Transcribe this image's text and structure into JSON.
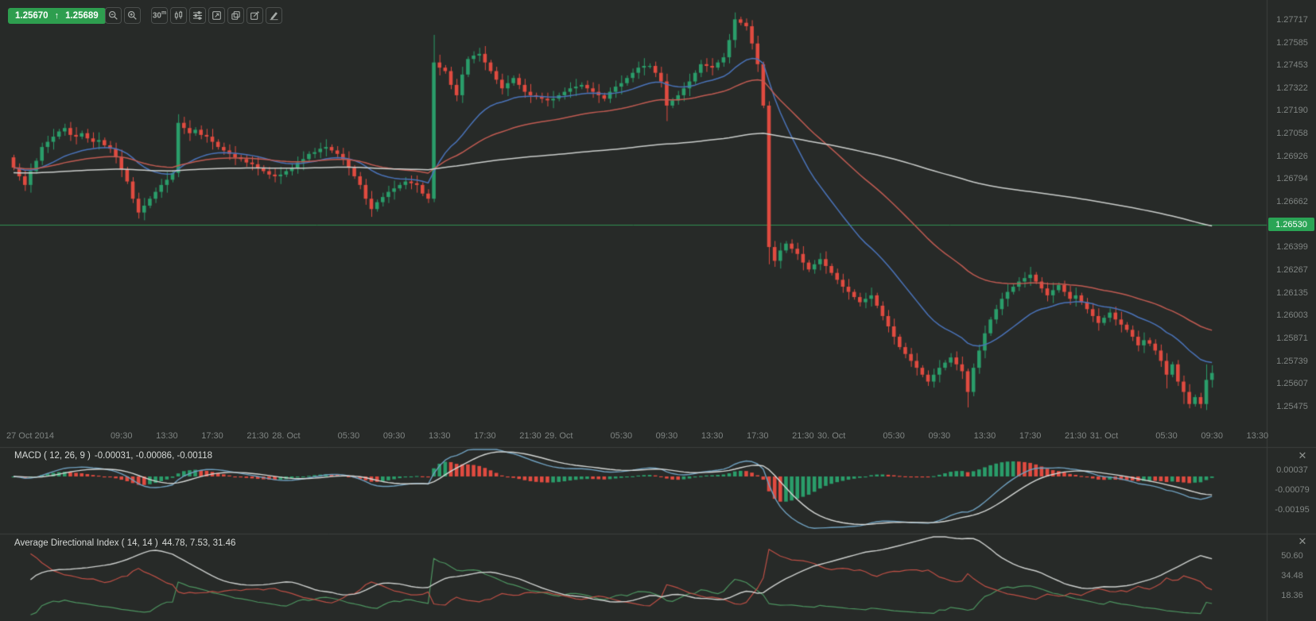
{
  "colors": {
    "background": "#272a28",
    "border": "#3c403e",
    "candle_up": "#2a9d6a",
    "candle_down": "#e04b40",
    "ma_fast": "#4a73b9",
    "ma_mid": "#c05b52",
    "ma_slow": "#cbcecc",
    "price_line": "#2f9150",
    "quote_badge_bg": "#2e9e4f",
    "current_price_badge_bg": "#2aa455",
    "macd_line": "#6fa0bf",
    "macd_signal": "#d4d7d5",
    "hist_up": "#2a9d6a",
    "hist_down": "#e04b40",
    "adx_line": "#cdd0ce",
    "plus_di": "#4d9460",
    "minus_di": "#bc4f45",
    "axis_text": "#7f8482",
    "header_text": "#d6d9d7"
  },
  "quote": {
    "bid": "1.25670",
    "arrow": "↑",
    "ask": "1.25689"
  },
  "toolbar": {
    "timeframe": {
      "value": "30",
      "unit": "m"
    },
    "icons": [
      "magnifier-minus",
      "magnifier-plus",
      "timeframe-30m",
      "candlestick",
      "sliders",
      "expand",
      "copy",
      "edit",
      "pen"
    ]
  },
  "price_axis": {
    "ticks": [
      "1.27717",
      "1.27585",
      "1.27453",
      "1.27322",
      "1.27190",
      "1.27058",
      "1.26926",
      "1.26794",
      "1.26662",
      "1.26530",
      "1.26399",
      "1.26267",
      "1.26135",
      "1.26003",
      "1.25871",
      "1.25739",
      "1.25607",
      "1.25475"
    ],
    "current_label": "1.26530"
  },
  "time_axis": {
    "ticks": [
      {
        "i": 0,
        "label": "27 Oct 2014"
      },
      {
        "i": 19,
        "label": "09:30"
      },
      {
        "i": 27,
        "label": "13:30"
      },
      {
        "i": 35,
        "label": "17:30"
      },
      {
        "i": 43,
        "label": "21:30"
      },
      {
        "i": 48,
        "label": "28. Oct"
      },
      {
        "i": 59,
        "label": "05:30"
      },
      {
        "i": 67,
        "label": "09:30"
      },
      {
        "i": 75,
        "label": "13:30"
      },
      {
        "i": 83,
        "label": "17:30"
      },
      {
        "i": 91,
        "label": "21:30"
      },
      {
        "i": 96,
        "label": "29. Oct"
      },
      {
        "i": 107,
        "label": "05:30"
      },
      {
        "i": 115,
        "label": "09:30"
      },
      {
        "i": 123,
        "label": "13:30"
      },
      {
        "i": 131,
        "label": "17:30"
      },
      {
        "i": 139,
        "label": "21:30"
      },
      {
        "i": 144,
        "label": "30. Oct"
      },
      {
        "i": 155,
        "label": "05:30"
      },
      {
        "i": 163,
        "label": "09:30"
      },
      {
        "i": 171,
        "label": "13:30"
      },
      {
        "i": 179,
        "label": "17:30"
      },
      {
        "i": 187,
        "label": "21:30"
      },
      {
        "i": 192,
        "label": "31. Oct"
      },
      {
        "i": 203,
        "label": "05:30"
      },
      {
        "i": 211,
        "label": "09:30"
      },
      {
        "i": 219,
        "label": "13:30"
      }
    ]
  },
  "panels": {
    "macd": {
      "title": "MACD ( 12, 26, 9 )",
      "values": "-0.00031, -0.00086, -0.00118",
      "close_label": "✕",
      "axis_ticks": [
        "0.00037",
        "-0.00079",
        "-0.00195"
      ]
    },
    "adx": {
      "title": "Average Directional Index ( 14, 14 )",
      "values": "44.78, 7.53, 31.46",
      "close_label": "✕",
      "axis_ticks": [
        "50.60",
        "34.48",
        "18.36"
      ]
    }
  },
  "chart_data": {
    "type": "candlestick",
    "interval": "30m",
    "visible_range": "27 Oct 2014 00:00 - 31 Oct 2014 09:30",
    "price_line": 1.2653,
    "y_ticks": [
      1.27717,
      1.27585,
      1.27453,
      1.27322,
      1.2719,
      1.27058,
      1.26926,
      1.26794,
      1.26662,
      1.2653,
      1.26399,
      1.26267,
      1.26135,
      1.26003,
      1.25871,
      1.25739,
      1.25607,
      1.25475
    ],
    "first_open": 1.2692,
    "closes": [
      1.2686,
      1.2681,
      1.2676,
      1.2684,
      1.269,
      1.2698,
      1.2701,
      1.2704,
      1.2707,
      1.2709,
      1.2705,
      1.2704,
      1.2706,
      1.2703,
      1.2701,
      1.2702,
      1.2699,
      1.2697,
      1.2692,
      1.2685,
      1.2678,
      1.2668,
      1.266,
      1.2664,
      1.2668,
      1.2672,
      1.2676,
      1.2679,
      1.2683,
      1.2712,
      1.2709,
      1.2706,
      1.2708,
      1.2705,
      1.2704,
      1.2701,
      1.2698,
      1.2696,
      1.2694,
      1.2692,
      1.2691,
      1.2689,
      1.2688,
      1.2686,
      1.2684,
      1.2682,
      1.2681,
      1.2682,
      1.2684,
      1.2686,
      1.2689,
      1.2691,
      1.2694,
      1.2695,
      1.2697,
      1.2698,
      1.2696,
      1.2694,
      1.2691,
      1.2686,
      1.2681,
      1.2676,
      1.2668,
      1.2662,
      1.2666,
      1.2669,
      1.2672,
      1.2674,
      1.2676,
      1.2678,
      1.2677,
      1.2676,
      1.2671,
      1.2668,
      1.2747,
      1.2744,
      1.2742,
      1.2734,
      1.2728,
      1.274,
      1.2749,
      1.2751,
      1.2752,
      1.2747,
      1.2742,
      1.2737,
      1.2732,
      1.2735,
      1.2738,
      1.2734,
      1.273,
      1.2728,
      1.2727,
      1.2726,
      1.2725,
      1.2726,
      1.2728,
      1.273,
      1.2732,
      1.2733,
      1.2734,
      1.2732,
      1.273,
      1.2728,
      1.2726,
      1.273,
      1.2733,
      1.2735,
      1.2738,
      1.2741,
      1.2744,
      1.2745,
      1.2745,
      1.2741,
      1.2736,
      1.2722,
      1.2725,
      1.2728,
      1.2732,
      1.2736,
      1.2741,
      1.2746,
      1.2745,
      1.2744,
      1.2747,
      1.275,
      1.276,
      1.2772,
      1.277,
      1.2768,
      1.2758,
      1.2746,
      1.2722,
      1.264,
      1.2632,
      1.2638,
      1.2642,
      1.2639,
      1.2636,
      1.2631,
      1.2627,
      1.263,
      1.2633,
      1.2629,
      1.2625,
      1.2621,
      1.2617,
      1.2614,
      1.2611,
      1.2608,
      1.261,
      1.2612,
      1.2606,
      1.26,
      1.2594,
      1.2588,
      1.2582,
      1.2578,
      1.2574,
      1.257,
      1.2566,
      1.2562,
      1.2566,
      1.257,
      1.2573,
      1.2576,
      1.2572,
      1.2568,
      1.2556,
      1.257,
      1.258,
      1.259,
      1.2598,
      1.2604,
      1.261,
      1.2614,
      1.2617,
      1.262,
      1.2622,
      1.2624,
      1.262,
      1.2616,
      1.2612,
      1.2615,
      1.2618,
      1.2614,
      1.261,
      1.2612,
      1.2608,
      1.2604,
      1.26,
      1.2596,
      1.2599,
      1.2602,
      1.2598,
      1.2595,
      1.2592,
      1.2588,
      1.2583,
      1.2586,
      1.2584,
      1.258,
      1.2574,
      1.2566,
      1.2572,
      1.2562,
      1.2556,
      1.2549,
      1.2553,
      1.2549,
      1.2563,
      1.2567
    ],
    "wick_overrides": {
      "29": [
        1.2717,
        null
      ],
      "74": [
        1.2763,
        1.2666
      ],
      "115": [
        null,
        1.2713
      ],
      "127": [
        1.2776,
        null
      ],
      "133": [
        null,
        1.263
      ],
      "168": [
        null,
        1.2547
      ],
      "203": [
        null,
        1.2558
      ],
      "206": [
        null,
        1.2549
      ],
      "207": [
        null,
        1.25465
      ],
      "210": [
        1.2572,
        null
      ]
    },
    "overlays": [
      {
        "type": "ema",
        "period": 20,
        "color_key": "ma_fast"
      },
      {
        "type": "ema",
        "period": 50,
        "color_key": "ma_mid"
      },
      {
        "type": "ema",
        "period": 240,
        "seed": 1.2683,
        "color_key": "ma_slow"
      }
    ],
    "indicators": [
      {
        "type": "macd",
        "fast": 12,
        "slow": 26,
        "signal": 9,
        "axis": [
          0.00037,
          -0.00079,
          -0.00195
        ]
      },
      {
        "type": "adx",
        "period": 14,
        "axis": [
          50.6,
          34.48,
          18.36
        ]
      }
    ]
  }
}
